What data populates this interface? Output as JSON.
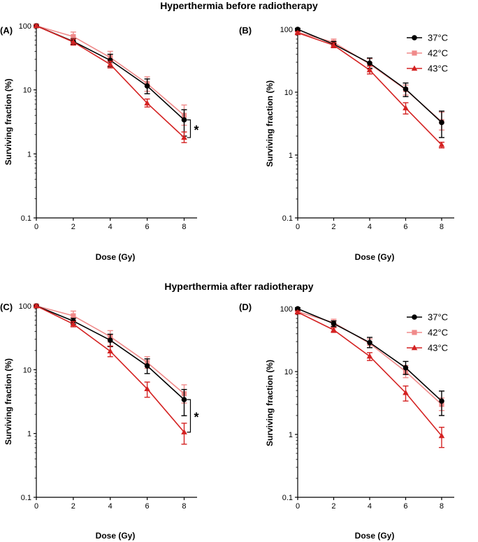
{
  "figure": {
    "title_top": "Hyperthermia before radiotherapy",
    "title_bottom": "Hyperthermia after radiotherapy"
  },
  "chart_data": [
    {
      "panel": "(A)",
      "type": "line",
      "xlabel": "Dose (Gy)",
      "ylabel": "Surviving fraction (%)",
      "x": [
        0,
        2,
        4,
        6,
        8
      ],
      "xticks": [
        "0",
        "2",
        "4",
        "6",
        "8"
      ],
      "yscale": "log",
      "ylim": [
        0.1,
        100
      ],
      "yticks": [
        "0.1",
        "1",
        "10",
        "100"
      ],
      "legend": false,
      "significance": "*",
      "significance_between": [
        "37°C",
        "43°C"
      ],
      "series": [
        {
          "name": "42°C",
          "color": "#f08a8a",
          "marker": "square",
          "values": [
            100,
            68,
            32,
            12.5,
            4.0
          ],
          "err_low": [
            96,
            58,
            26,
            9.5,
            2.8
          ],
          "err_high": [
            104,
            80,
            40,
            16,
            5.8
          ]
        },
        {
          "name": "37°C",
          "color": "#000000",
          "marker": "circle",
          "values": [
            100,
            57,
            29,
            11.5,
            3.4
          ],
          "err_low": [
            96,
            51,
            23,
            8.7,
            1.9
          ],
          "err_high": [
            104,
            63,
            36,
            14.8,
            4.9
          ]
        },
        {
          "name": "43°C",
          "color": "#d42222",
          "marker": "triangle",
          "values": [
            100,
            56,
            25,
            6.2,
            1.8
          ],
          "err_low": [
            96,
            50,
            22,
            5.4,
            1.5
          ],
          "err_high": [
            104,
            62,
            28,
            7.2,
            2.2
          ]
        }
      ]
    },
    {
      "panel": "(B)",
      "type": "line",
      "xlabel": "Dose (Gy)",
      "ylabel": "Surviving fraction (%)",
      "x": [
        0,
        2,
        4,
        6,
        8
      ],
      "xticks": [
        "0",
        "2",
        "4",
        "6",
        "8"
      ],
      "yscale": "log",
      "ylim": [
        0.1,
        100
      ],
      "yticks": [
        "0.1",
        "1",
        "10",
        "100"
      ],
      "legend": true,
      "legend_position": "top-right",
      "series": [
        {
          "name": "42°C",
          "color": "#f08a8a",
          "marker": "square",
          "values": [
            90,
            62,
            28,
            11,
            3.4
          ],
          "err_low": [
            86,
            55,
            23,
            9,
            2.5
          ],
          "err_high": [
            94,
            70,
            34,
            13,
            4.8
          ]
        },
        {
          "name": "37°C",
          "color": "#000000",
          "marker": "circle",
          "values": [
            100,
            58,
            29,
            11.2,
            3.3
          ],
          "err_low": [
            96,
            52,
            24,
            8.5,
            1.9
          ],
          "err_high": [
            104,
            64,
            35,
            14,
            5.0
          ]
        },
        {
          "name": "43°C",
          "color": "#d42222",
          "marker": "triangle",
          "values": [
            88,
            56,
            22.5,
            5.6,
            1.45
          ],
          "err_low": [
            84,
            51,
            19.5,
            4.5,
            1.3
          ],
          "err_high": [
            92,
            61,
            26,
            6.8,
            1.6
          ]
        }
      ]
    },
    {
      "panel": "(C)",
      "type": "line",
      "xlabel": "Dose (Gy)",
      "ylabel": "Surviving fraction (%)",
      "x": [
        0,
        2,
        4,
        6,
        8
      ],
      "xticks": [
        "0",
        "2",
        "4",
        "6",
        "8"
      ],
      "yscale": "log",
      "ylim": [
        0.1,
        100
      ],
      "yticks": [
        "0.1",
        "1",
        "10",
        "100"
      ],
      "legend": false,
      "significance": "*",
      "significance_between": [
        "37°C",
        "43°C"
      ],
      "series": [
        {
          "name": "42°C",
          "color": "#f08a8a",
          "marker": "square",
          "values": [
            100,
            70,
            33,
            13,
            4.2
          ],
          "err_low": [
            96,
            60,
            27,
            10.5,
            3.0
          ],
          "err_high": [
            104,
            83,
            41,
            16,
            5.8
          ]
        },
        {
          "name": "37°C",
          "color": "#000000",
          "marker": "circle",
          "values": [
            100,
            58,
            29,
            11.5,
            3.4
          ],
          "err_low": [
            96,
            52,
            23,
            8.7,
            1.9
          ],
          "err_high": [
            104,
            64,
            36,
            14.8,
            4.9
          ]
        },
        {
          "name": "43°C",
          "color": "#d42222",
          "marker": "triangle",
          "values": [
            100,
            52,
            19.5,
            5.0,
            1.05
          ],
          "err_low": [
            96,
            47,
            16,
            3.7,
            0.68
          ],
          "err_high": [
            104,
            57,
            23.5,
            6.4,
            1.45
          ]
        }
      ]
    },
    {
      "panel": "(D)",
      "type": "line",
      "xlabel": "Dose (Gy)",
      "ylabel": "Surviving fraction (%)",
      "x": [
        0,
        2,
        4,
        6,
        8
      ],
      "xticks": [
        "0",
        "2",
        "4",
        "6",
        "8"
      ],
      "yscale": "log",
      "ylim": [
        0.1,
        100
      ],
      "yticks": [
        "0.1",
        "1",
        "10",
        "100"
      ],
      "legend": true,
      "legend_position": "top-right",
      "series": [
        {
          "name": "42°C",
          "color": "#f08a8a",
          "marker": "square",
          "values": [
            90,
            60,
            28,
            10,
            3.0
          ],
          "err_low": [
            86,
            53,
            24,
            8,
            2.4
          ],
          "err_high": [
            94,
            68,
            33,
            12.5,
            3.8
          ]
        },
        {
          "name": "37°C",
          "color": "#000000",
          "marker": "circle",
          "values": [
            100,
            58,
            29,
            11.5,
            3.4
          ],
          "err_low": [
            96,
            52,
            24,
            9,
            2.0
          ],
          "err_high": [
            104,
            64,
            35,
            14.5,
            4.9
          ]
        },
        {
          "name": "43°C",
          "color": "#d42222",
          "marker": "triangle",
          "values": [
            88,
            46,
            17.5,
            4.6,
            0.95
          ],
          "err_low": [
            84,
            42,
            15,
            3.4,
            0.62
          ],
          "err_high": [
            92,
            50,
            20,
            5.9,
            1.3
          ]
        }
      ]
    }
  ]
}
